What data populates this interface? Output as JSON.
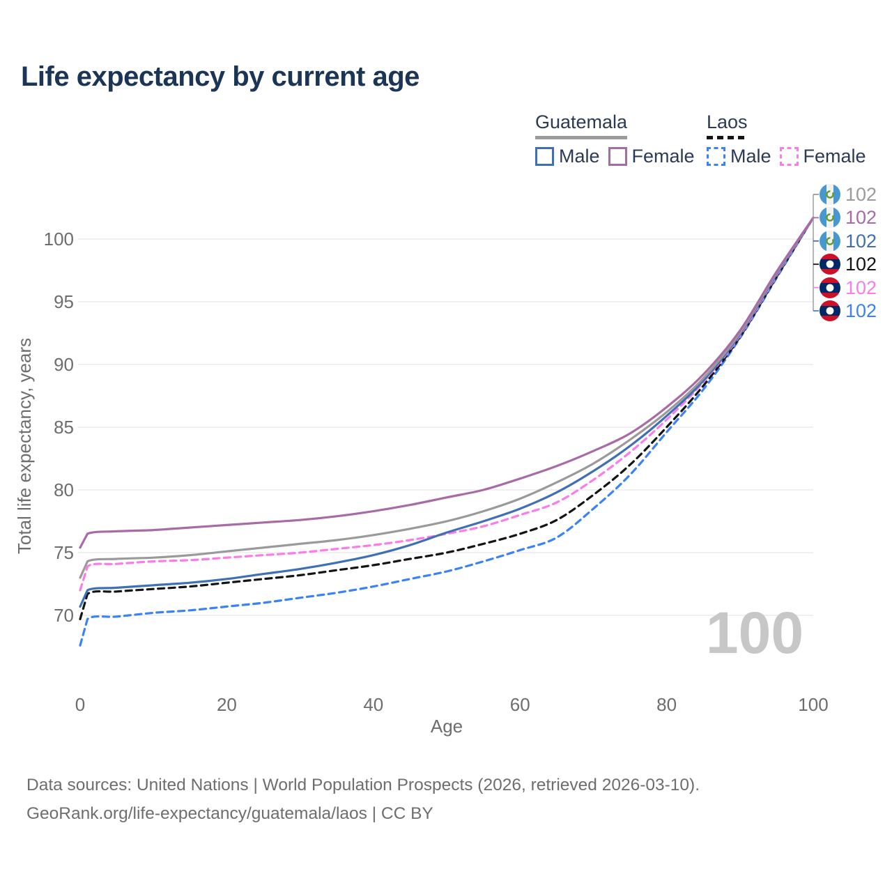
{
  "title": "Life expectancy by current age",
  "legend": {
    "groups": [
      {
        "label": "Guatemala",
        "line_style": "solid",
        "underline_color": "#9b9b9b",
        "items": [
          {
            "label": "Male",
            "color": "#3f6fb4",
            "dashed": false
          },
          {
            "label": "Female",
            "color": "#a86ba6",
            "dashed": false
          }
        ]
      },
      {
        "label": "Laos",
        "line_style": "dashed",
        "underline_color": "#141414",
        "items": [
          {
            "label": "Male",
            "color": "#3b82f6",
            "dashed": true
          },
          {
            "label": "Female",
            "color": "#fb7ce8",
            "dashed": true
          }
        ]
      }
    ]
  },
  "chart_data": {
    "type": "line",
    "title": "Life expectancy by current age",
    "xlabel": "Age",
    "ylabel": "Total life expectancy, years",
    "xlim": [
      0,
      100
    ],
    "ylim": [
      66,
      103
    ],
    "xticks": [
      0,
      20,
      40,
      60,
      80,
      100
    ],
    "yticks": [
      70,
      75,
      80,
      85,
      90,
      95,
      100
    ],
    "grid": "horizontal",
    "legend_position": "top-right",
    "watermark": "100",
    "x": [
      0,
      1,
      5,
      10,
      15,
      20,
      25,
      30,
      35,
      40,
      45,
      50,
      55,
      60,
      65,
      70,
      75,
      80,
      85,
      90,
      95,
      100
    ],
    "series": [
      {
        "name": "Guatemala Total",
        "country": "Guatemala",
        "sex": "Total",
        "color": "#9a9a9a",
        "dashed": false,
        "flag": "guatemala",
        "end_label": "102",
        "values": [
          73.0,
          74.3,
          74.5,
          74.6,
          74.8,
          75.1,
          75.4,
          75.7,
          76.0,
          76.4,
          76.9,
          77.5,
          78.3,
          79.3,
          80.6,
          82.1,
          84.0,
          86.2,
          88.9,
          92.5,
          97.3,
          101.7
        ]
      },
      {
        "name": "Guatemala Female",
        "country": "Guatemala",
        "sex": "Female",
        "color": "#a86ba6",
        "dashed": false,
        "flag": "guatemala",
        "end_label": "102",
        "values": [
          75.4,
          76.5,
          76.7,
          76.8,
          77.0,
          77.2,
          77.4,
          77.6,
          77.9,
          78.3,
          78.8,
          79.4,
          80.0,
          80.9,
          81.9,
          83.1,
          84.5,
          86.6,
          89.2,
          92.7,
          97.4,
          101.7
        ]
      },
      {
        "name": "Guatemala Male",
        "country": "Guatemala",
        "sex": "Male",
        "color": "#3f6fb4",
        "dashed": false,
        "flag": "guatemala",
        "end_label": "102",
        "values": [
          70.7,
          72.0,
          72.2,
          72.4,
          72.6,
          72.9,
          73.3,
          73.7,
          74.2,
          74.8,
          75.6,
          76.6,
          77.5,
          78.5,
          79.8,
          81.5,
          83.5,
          85.9,
          88.7,
          92.4,
          97.2,
          101.7
        ]
      },
      {
        "name": "Laos Total",
        "country": "Laos",
        "sex": "Total",
        "color": "#141414",
        "dashed": true,
        "flag": "laos",
        "end_label": "102",
        "values": [
          69.7,
          71.7,
          71.9,
          72.1,
          72.3,
          72.6,
          72.9,
          73.2,
          73.6,
          74.0,
          74.5,
          75.0,
          75.7,
          76.5,
          77.6,
          79.6,
          82.0,
          85.0,
          88.3,
          92.2,
          97.0,
          101.7
        ]
      },
      {
        "name": "Laos Female",
        "country": "Laos",
        "sex": "Female",
        "color": "#fb7ce8",
        "dashed": true,
        "flag": "laos",
        "end_label": "102",
        "values": [
          72.0,
          73.9,
          74.1,
          74.3,
          74.4,
          74.6,
          74.8,
          75.0,
          75.3,
          75.6,
          76.0,
          76.5,
          77.1,
          78.0,
          79.0,
          80.8,
          83.0,
          85.6,
          88.6,
          92.3,
          97.1,
          101.7
        ]
      },
      {
        "name": "Laos Male",
        "country": "Laos",
        "sex": "Male",
        "color": "#3b82f6",
        "dashed": true,
        "flag": "laos",
        "end_label": "102",
        "values": [
          67.6,
          69.7,
          69.9,
          70.2,
          70.4,
          70.7,
          71.0,
          71.4,
          71.8,
          72.3,
          72.9,
          73.5,
          74.3,
          75.2,
          76.2,
          78.5,
          81.2,
          84.6,
          88.0,
          92.1,
          96.9,
          101.7
        ]
      }
    ],
    "flag_colors": {
      "guatemala_blue": "#4997d0",
      "guatemala_emblem": "#5c9e31",
      "laos_red": "#ce1126",
      "laos_blue": "#002868"
    }
  },
  "footer": {
    "line1": "Data sources: United Nations | World Population Prospects (2026, retrieved 2026-03-10).",
    "line2": "GeoRank.org/life-expectancy/guatemala/laos | CC BY"
  }
}
